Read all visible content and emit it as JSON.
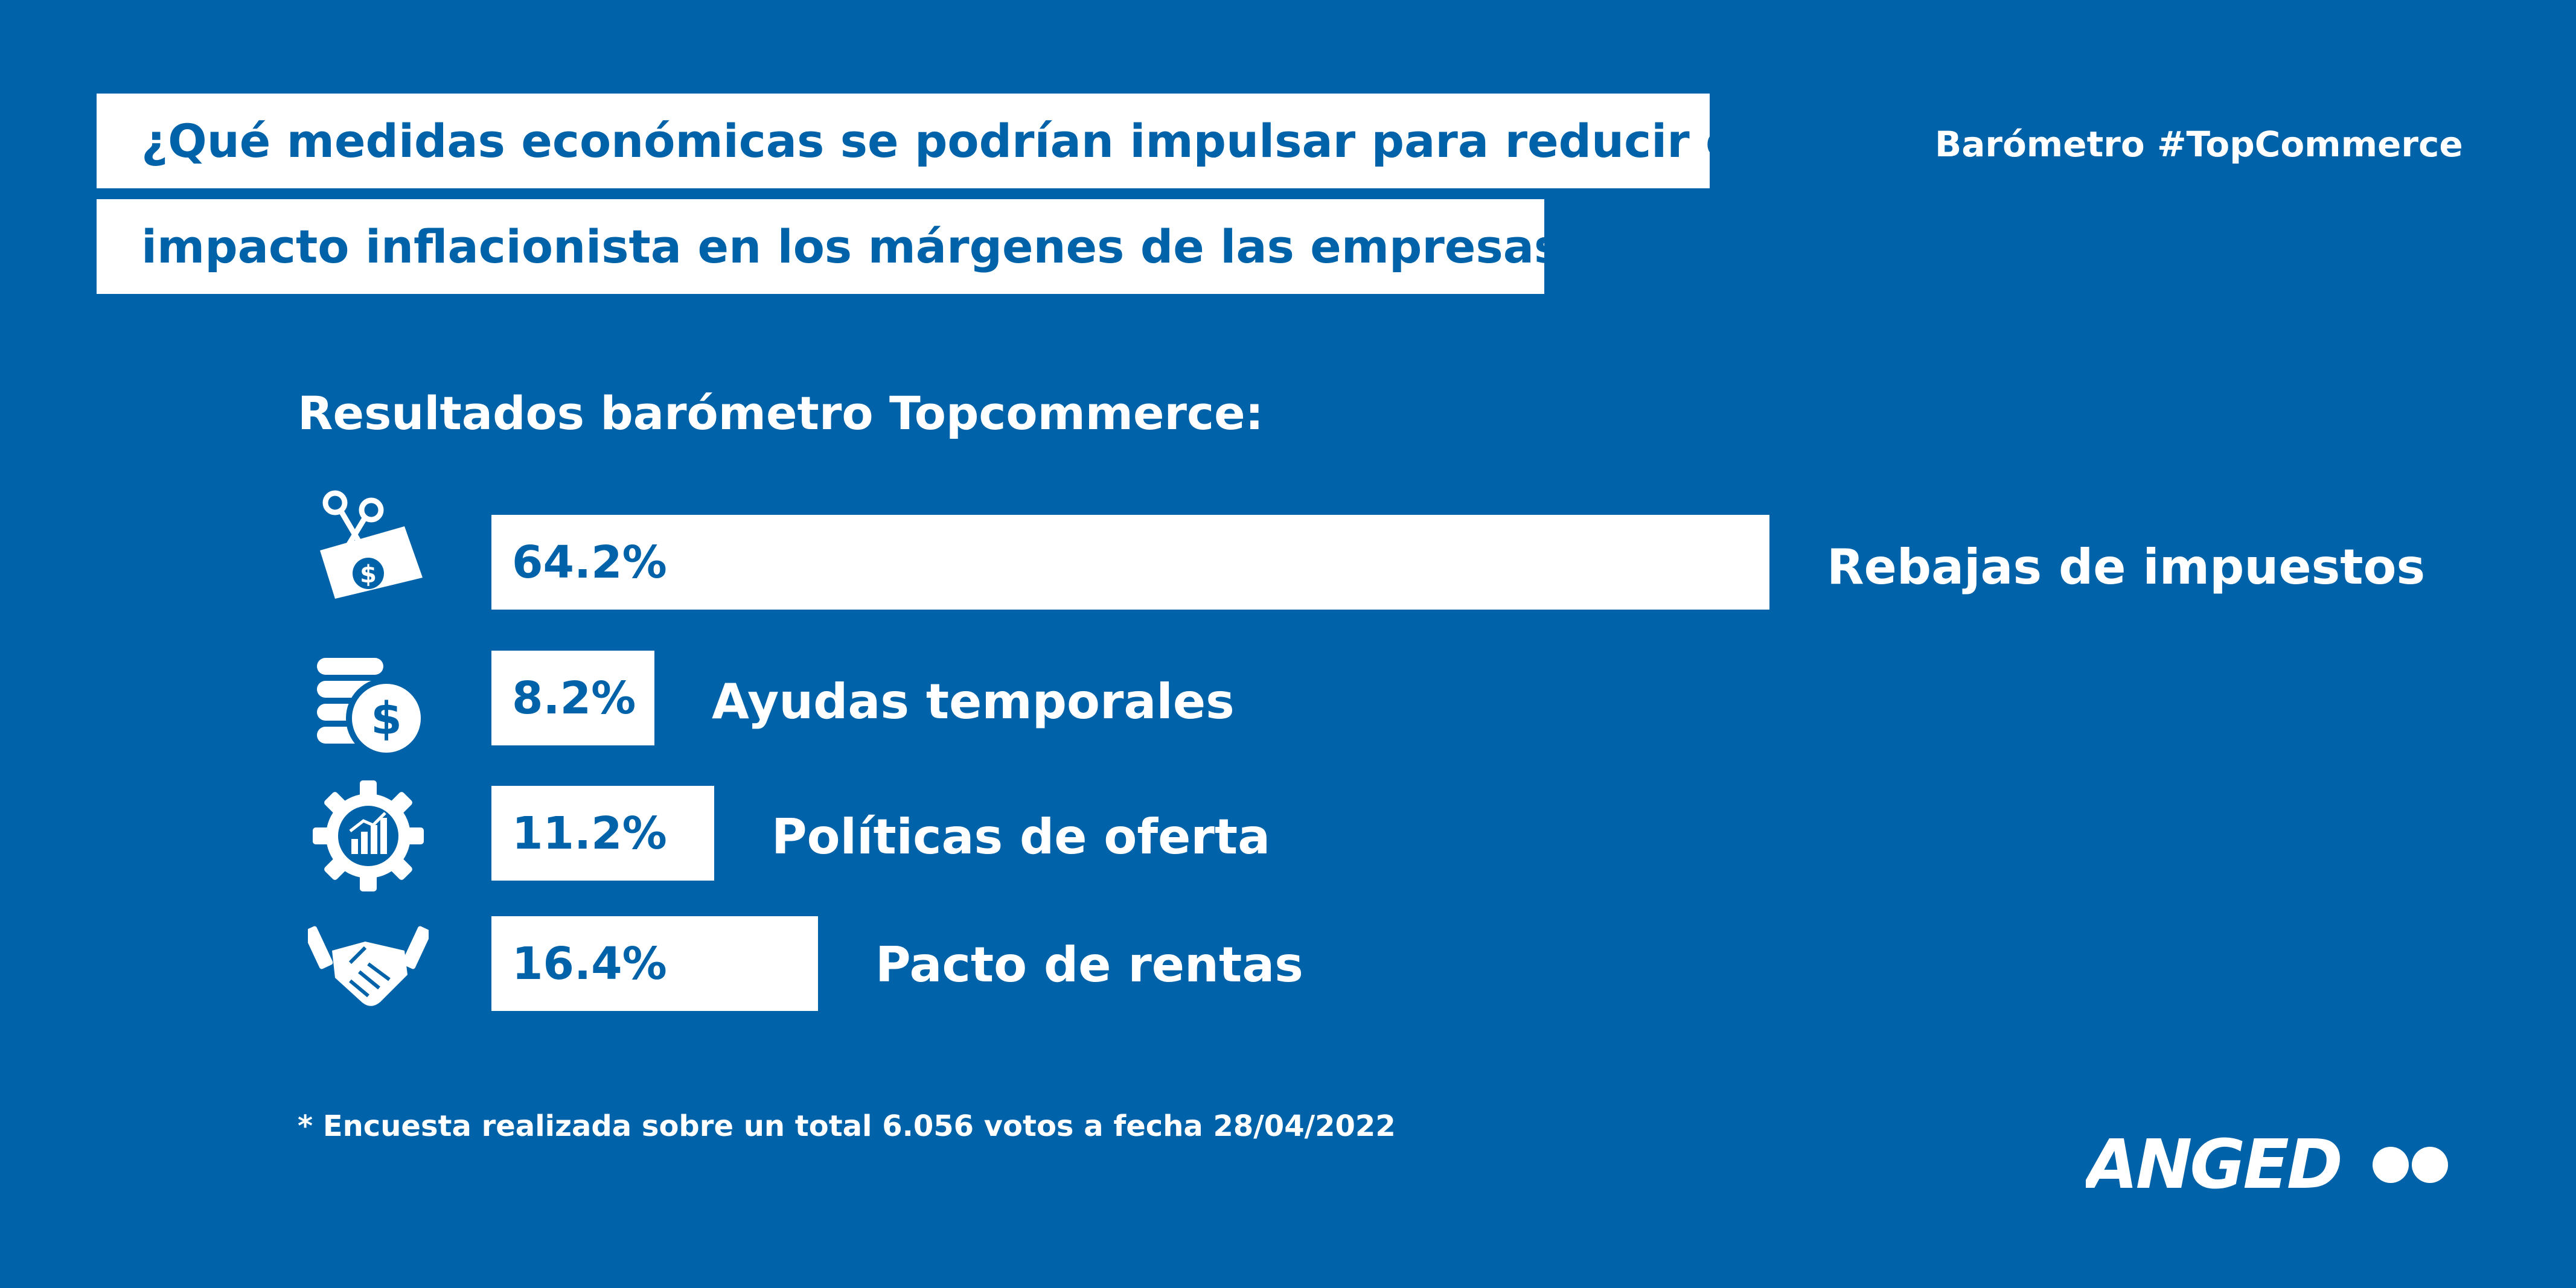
{
  "title": {
    "line1": "¿Qué medidas económicas se podrían impulsar para reducir el",
    "line2": "impacto inflacionista en los márgenes de las empresas?"
  },
  "brand_tag": "Barómetro #TopCommerce",
  "subtitle": "Resultados barómetro Topcommerce:",
  "footnote": "* Encuesta realizada sobre un total 6.056 votos a fecha 28/04/2022",
  "logo": "ANGED",
  "colors": {
    "background": "#0062a8",
    "bar": "#ffffff",
    "text_light": "#ffffff",
    "text_accent": "#0062a8"
  },
  "icons": [
    "scissors-money-icon",
    "coins-dollar-icon",
    "gear-chart-icon",
    "handshake-icon"
  ],
  "chart_data": {
    "type": "bar",
    "orientation": "horizontal",
    "categories": [
      "Rebajas de impuestos",
      "Ayudas temporales",
      "Políticas de oferta",
      "Pacto de rentas"
    ],
    "values": [
      64.2,
      8.2,
      11.2,
      16.4
    ],
    "value_labels": [
      "64.2%",
      "8.2%",
      "11.2%",
      "16.4%"
    ],
    "unit": "%",
    "grid": false,
    "legend": false
  }
}
